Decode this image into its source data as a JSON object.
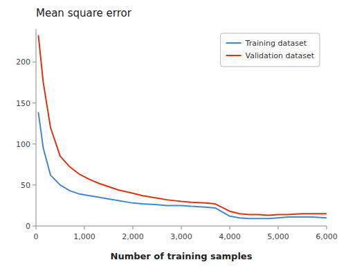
{
  "chart_data": {
    "type": "line",
    "title": "Mean square error",
    "xlabel": "Number of training samples",
    "x": [
      50,
      150,
      300,
      500,
      700,
      900,
      1100,
      1300,
      1500,
      1700,
      2000,
      2200,
      2500,
      2700,
      3000,
      3200,
      3500,
      3700,
      4000,
      4200,
      4400,
      4600,
      4800,
      5000,
      5200,
      5500,
      5700,
      6000
    ],
    "series": [
      {
        "name": "Training dataset",
        "color": "#4488CC",
        "values": [
          138,
          95,
          62,
          50,
          43,
          39,
          37,
          35,
          33,
          31,
          28,
          27,
          26,
          25,
          25,
          24,
          23,
          22,
          12,
          10,
          9,
          9,
          9,
          10,
          11,
          11,
          11,
          10
        ]
      },
      {
        "name": "Validation dataset",
        "color": "#DD3311",
        "values": [
          232,
          175,
          120,
          85,
          72,
          63,
          57,
          52,
          48,
          44,
          40,
          37,
          34,
          32,
          30,
          29,
          28,
          27,
          18,
          15,
          14,
          14,
          13,
          14,
          14,
          15,
          15,
          15
        ]
      }
    ],
    "xlim": [
      0,
      6000
    ],
    "ylim": [
      0,
      240
    ],
    "xticks": [
      0,
      {
        "value": 1000,
        "label": "1,000"
      },
      {
        "value": 2000,
        "label": "2,000"
      },
      {
        "value": 3000,
        "label": "3,000"
      },
      {
        "value": 4000,
        "label": "4,000"
      },
      {
        "value": 5000,
        "label": "5,000"
      },
      {
        "value": 6000,
        "label": "6,000"
      }
    ],
    "yticks": [
      0,
      50,
      100,
      150,
      200
    ],
    "grid": false,
    "legend": "upper right"
  }
}
